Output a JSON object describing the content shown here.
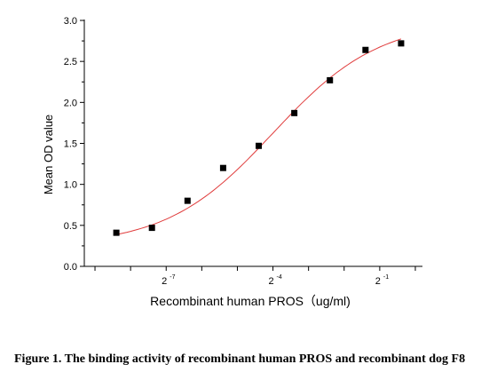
{
  "chart_data": {
    "type": "scatter",
    "xlabel": "Recombinant human PROS（ug/ml)",
    "ylabel": "Mean OD value",
    "xscale": "log2",
    "xlim": [
      -9.3,
      0.2
    ],
    "ylim": [
      0.0,
      3.0
    ],
    "xticks_labeled": [
      {
        "base": "2",
        "exp": "-7"
      },
      {
        "base": "2",
        "exp": "-4"
      },
      {
        "base": "2",
        "exp": "-1"
      }
    ],
    "yticks": [
      "0.0",
      "0.5",
      "1.0",
      "1.5",
      "2.0",
      "2.5",
      "3.0"
    ],
    "points_log2_x": [
      -8.4,
      -7.4,
      -6.4,
      -5.4,
      -4.4,
      -3.4,
      -2.4,
      -1.4,
      -0.4
    ],
    "points_y": [
      0.41,
      0.47,
      0.8,
      1.2,
      1.47,
      1.87,
      2.27,
      2.64,
      2.72
    ],
    "fit_curve": {
      "model": "4PL",
      "bottom": 0.25,
      "top": 3.0,
      "ec50_log2": -4.0,
      "hill": 0.42
    },
    "colors": {
      "points": "#000000",
      "fit_line": "#e03c3c",
      "axis": "#000000"
    },
    "grid": false
  },
  "caption": "Figure 1. The binding activity of recombinant human PROS and recombinant dog F8"
}
